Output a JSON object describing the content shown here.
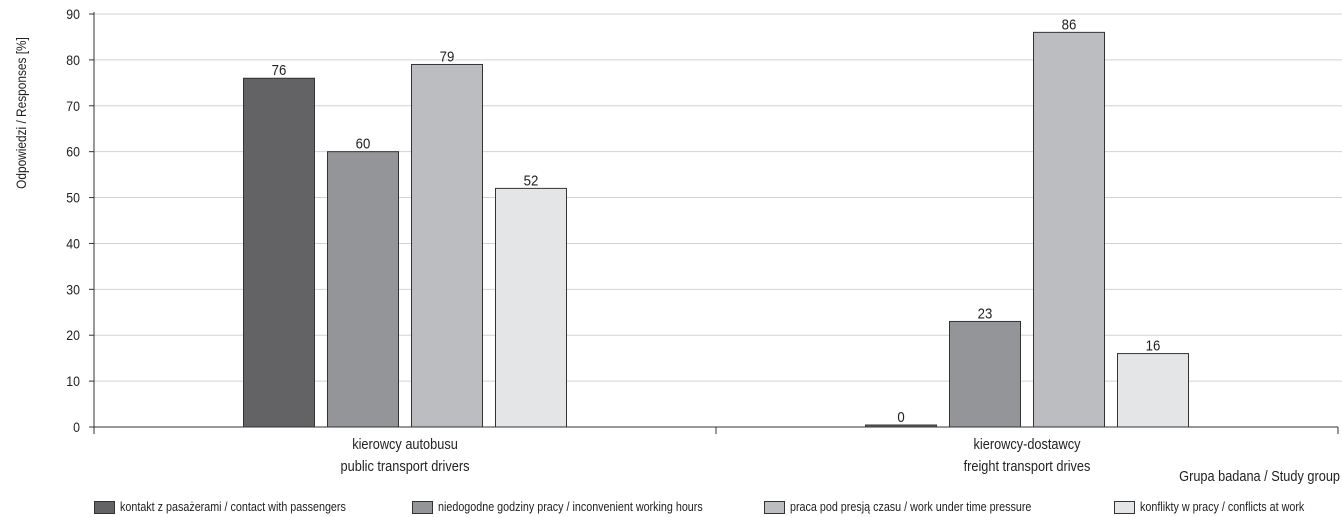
{
  "chart_data": {
    "type": "bar",
    "title": "",
    "ylabel": "Odpowiedzi / Responses [%]",
    "xlabel": "Grupa badana / Study group",
    "ylim": [
      0,
      90
    ],
    "yticks": [
      0,
      10,
      20,
      30,
      40,
      50,
      60,
      70,
      80,
      90
    ],
    "grid": true,
    "legend_position": "bottom",
    "categories": [
      {
        "line1": "kierowcy autobusu",
        "line2": "public transport drivers"
      },
      {
        "line1": "kierowcy-dostawcy",
        "line2": "freight transport drives"
      }
    ],
    "series": [
      {
        "name": "kontakt z pasażerami / contact with passengers",
        "color": "#636365",
        "values": [
          76,
          0
        ]
      },
      {
        "name": "niedogodne godziny pracy / inconvenient working hours",
        "color": "#949599",
        "values": [
          60,
          23
        ]
      },
      {
        "name": "praca pod presją czasu / work under time pressure",
        "color": "#bcbdc0",
        "values": [
          79,
          86
        ]
      },
      {
        "name": "konflikty w pracy / conflicts at work",
        "color": "#e4e5e7",
        "values": [
          52,
          16
        ]
      }
    ]
  }
}
